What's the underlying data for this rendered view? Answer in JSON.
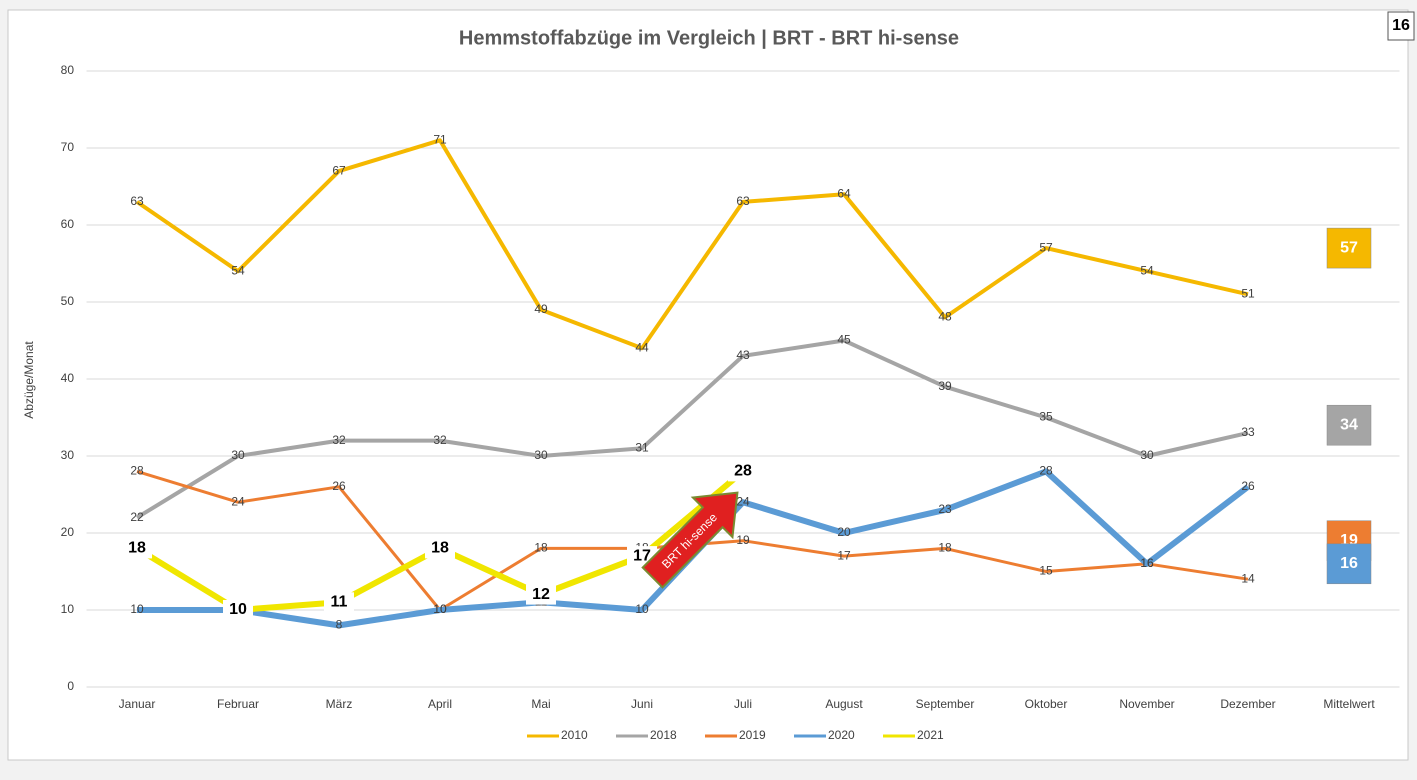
{
  "chart_data": {
    "type": "line",
    "title": "Hemmstoffabzüge im Vergleich | BRT - BRT hi-sense",
    "y_label": "Abzüge/Monat",
    "categories": [
      "Januar",
      "Februar",
      "März",
      "April",
      "Mai",
      "Juni",
      "Juli",
      "August",
      "September",
      "Oktober",
      "November",
      "Dezember"
    ],
    "mean_label": "Mittelwert",
    "series": [
      {
        "name": "2010",
        "color": "#f5b800",
        "width": 4,
        "values": [
          63,
          54,
          67,
          71,
          49,
          44,
          63,
          64,
          48,
          57,
          54,
          51
        ],
        "mean": 57
      },
      {
        "name": "2018",
        "color": "#a5a5a5",
        "width": 4,
        "values": [
          22,
          30,
          32,
          32,
          30,
          31,
          43,
          45,
          39,
          35,
          30,
          33
        ],
        "mean": 34
      },
      {
        "name": "2019",
        "color": "#ed7d31",
        "width": 3,
        "values": [
          28,
          24,
          26,
          10,
          18,
          18,
          19,
          17,
          18,
          15,
          16,
          14
        ],
        "mean": 19
      },
      {
        "name": "2020",
        "color": "#5b9bd5",
        "width": 6,
        "values": [
          10,
          10,
          8,
          10,
          11,
          10,
          24,
          20,
          23,
          28,
          16,
          26
        ],
        "mean": 16
      },
      {
        "name": "2021",
        "color": "#f0e600",
        "width": 6,
        "bold_labels": true,
        "values": [
          18,
          10,
          11,
          18,
          12,
          17,
          28,
          null,
          null,
          null,
          null,
          null
        ]
      }
    ],
    "annotation": "BRT hi-sense",
    "corner_label": "16",
    "ylim": [
      0,
      80
    ],
    "yticks": [
      0,
      10,
      20,
      30,
      40,
      50,
      60,
      70,
      80
    ],
    "grid": true,
    "legend": "bottom"
  }
}
